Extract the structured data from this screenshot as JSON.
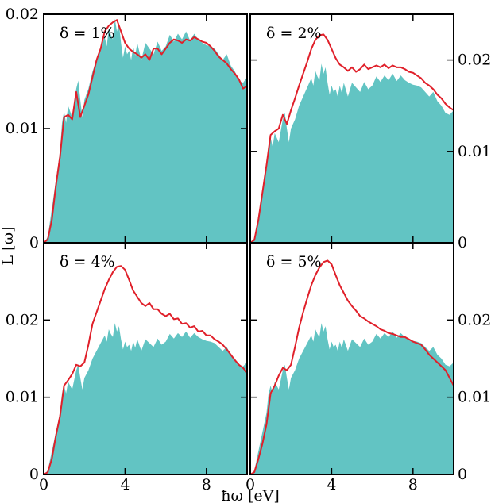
{
  "figure": {
    "ylabel": "L [ω]",
    "xlabel": "ħω [eV]"
  },
  "colors": {
    "fill": "#62c4c3",
    "line": "#e0202a",
    "frame": "#000000"
  },
  "chart_data": [
    {
      "type": "area",
      "panel_label": "δ = 1%",
      "ylim": [
        0,
        0.02
      ],
      "xlim": [
        0,
        10
      ],
      "yticks": [
        0,
        0.01,
        0.02
      ],
      "ytick_labels": [
        "0",
        "0.01",
        "0.02"
      ],
      "ytick_side": "left",
      "xticks": [
        0,
        4,
        8
      ],
      "xtick_labels": [],
      "legend": "top-left",
      "grid": false,
      "series": [
        {
          "kind": "filled",
          "x": [
            0,
            0.2,
            0.4,
            0.6,
            0.8,
            0.9,
            1.0,
            1.1,
            1.2,
            1.4,
            1.6,
            1.7,
            1.8,
            1.9,
            2.0,
            2.2,
            2.4,
            2.6,
            2.8,
            3.0,
            3.1,
            3.2,
            3.3,
            3.4,
            3.5,
            3.6,
            3.7,
            3.8,
            3.9,
            4.0,
            4.1,
            4.2,
            4.3,
            4.4,
            4.5,
            4.6,
            4.8,
            5.0,
            5.2,
            5.4,
            5.6,
            5.8,
            6.0,
            6.2,
            6.4,
            6.6,
            6.8,
            7.0,
            7.2,
            7.4,
            7.6,
            7.8,
            8.0,
            8.2,
            8.4,
            8.6,
            8.8,
            9.0,
            9.2,
            9.4,
            9.6,
            9.8,
            10.0
          ],
          "y": [
            0,
            0.0005,
            0.003,
            0.0055,
            0.008,
            0.0105,
            0.0115,
            0.0105,
            0.012,
            0.011,
            0.0135,
            0.0142,
            0.0125,
            0.011,
            0.0125,
            0.0135,
            0.015,
            0.016,
            0.017,
            0.018,
            0.0172,
            0.0188,
            0.0182,
            0.0178,
            0.0196,
            0.0185,
            0.0192,
            0.0175,
            0.0162,
            0.0172,
            0.0165,
            0.0168,
            0.016,
            0.0172,
            0.0164,
            0.0175,
            0.016,
            0.0175,
            0.017,
            0.0165,
            0.0176,
            0.0168,
            0.0172,
            0.0182,
            0.0176,
            0.0183,
            0.0178,
            0.0185,
            0.0177,
            0.0183,
            0.0178,
            0.0175,
            0.0173,
            0.0172,
            0.017,
            0.0165,
            0.016,
            0.0165,
            0.0155,
            0.015,
            0.0142,
            0.014,
            0.0145
          ]
        },
        {
          "kind": "line",
          "x": [
            0,
            0.2,
            0.4,
            0.6,
            0.8,
            1.0,
            1.2,
            1.4,
            1.6,
            1.8,
            2.0,
            2.2,
            2.4,
            2.6,
            2.8,
            3.0,
            3.2,
            3.4,
            3.6,
            3.8,
            4.0,
            4.2,
            4.4,
            4.6,
            4.8,
            5.0,
            5.2,
            5.4,
            5.6,
            5.8,
            6.0,
            6.2,
            6.4,
            6.6,
            6.8,
            7.0,
            7.2,
            7.4,
            7.6,
            7.8,
            8.0,
            8.2,
            8.4,
            8.6,
            8.8,
            9.0,
            9.2,
            9.4,
            9.6,
            9.8,
            10.0
          ],
          "y": [
            0,
            0.0003,
            0.002,
            0.005,
            0.0075,
            0.011,
            0.0112,
            0.0108,
            0.0132,
            0.011,
            0.012,
            0.013,
            0.0145,
            0.016,
            0.017,
            0.0185,
            0.019,
            0.0193,
            0.0195,
            0.0185,
            0.0175,
            0.017,
            0.0167,
            0.0165,
            0.0162,
            0.0165,
            0.016,
            0.017,
            0.017,
            0.0165,
            0.017,
            0.0175,
            0.0178,
            0.0177,
            0.0175,
            0.0178,
            0.0177,
            0.018,
            0.0178,
            0.0176,
            0.0175,
            0.0172,
            0.0168,
            0.0163,
            0.016,
            0.0157,
            0.0152,
            0.0148,
            0.0143,
            0.0135,
            0.0137
          ]
        }
      ]
    },
    {
      "type": "area",
      "panel_label": "δ = 2%",
      "ylim": [
        0,
        0.025
      ],
      "xlim": [
        0,
        10
      ],
      "yticks": [
        0,
        0.01,
        0.02
      ],
      "ytick_labels": [
        "0",
        "0.01",
        "0.02"
      ],
      "ytick_side": "right",
      "xticks": [
        0,
        4,
        8
      ],
      "xtick_labels": [],
      "legend": "top-left",
      "grid": false,
      "series": [
        {
          "kind": "filled",
          "x": [
            0,
            0.2,
            0.4,
            0.6,
            0.8,
            0.9,
            1.0,
            1.1,
            1.2,
            1.4,
            1.6,
            1.7,
            1.8,
            1.9,
            2.0,
            2.2,
            2.4,
            2.6,
            2.8,
            3.0,
            3.1,
            3.2,
            3.3,
            3.4,
            3.5,
            3.6,
            3.7,
            3.8,
            3.9,
            4.0,
            4.1,
            4.2,
            4.3,
            4.4,
            4.5,
            4.6,
            4.8,
            5.0,
            5.2,
            5.4,
            5.6,
            5.8,
            6.0,
            6.2,
            6.4,
            6.6,
            6.8,
            7.0,
            7.2,
            7.4,
            7.6,
            7.8,
            8.0,
            8.2,
            8.4,
            8.6,
            8.8,
            9.0,
            9.2,
            9.4,
            9.6,
            9.8,
            10.0
          ],
          "y": [
            0,
            0.0005,
            0.003,
            0.0055,
            0.008,
            0.0105,
            0.0115,
            0.0105,
            0.012,
            0.011,
            0.0135,
            0.0142,
            0.0125,
            0.011,
            0.0125,
            0.0135,
            0.015,
            0.016,
            0.017,
            0.018,
            0.0172,
            0.0188,
            0.0182,
            0.0178,
            0.0196,
            0.0185,
            0.0192,
            0.0175,
            0.0162,
            0.0172,
            0.0165,
            0.0168,
            0.016,
            0.0172,
            0.0164,
            0.0175,
            0.016,
            0.0175,
            0.017,
            0.0165,
            0.0176,
            0.0168,
            0.0172,
            0.0182,
            0.0176,
            0.0183,
            0.0178,
            0.0185,
            0.0177,
            0.0183,
            0.0178,
            0.0175,
            0.0173,
            0.0172,
            0.017,
            0.0165,
            0.016,
            0.0165,
            0.0155,
            0.015,
            0.0142,
            0.014,
            0.0145
          ]
        },
        {
          "kind": "line",
          "x": [
            0,
            0.2,
            0.4,
            0.6,
            0.8,
            1.0,
            1.2,
            1.4,
            1.6,
            1.8,
            2.0,
            2.2,
            2.4,
            2.6,
            2.8,
            3.0,
            3.2,
            3.4,
            3.6,
            3.8,
            4.0,
            4.2,
            4.4,
            4.6,
            4.8,
            5.0,
            5.2,
            5.4,
            5.6,
            5.8,
            6.0,
            6.2,
            6.4,
            6.6,
            6.8,
            7.0,
            7.2,
            7.4,
            7.6,
            7.8,
            8.0,
            8.2,
            8.4,
            8.6,
            8.8,
            9.0,
            9.2,
            9.4,
            9.6,
            9.8,
            10.0
          ],
          "y": [
            0,
            0.0003,
            0.0025,
            0.0055,
            0.0085,
            0.0118,
            0.0122,
            0.0125,
            0.014,
            0.013,
            0.0145,
            0.0158,
            0.0172,
            0.0185,
            0.0198,
            0.0212,
            0.0222,
            0.0227,
            0.0228,
            0.0222,
            0.0212,
            0.0202,
            0.0195,
            0.0192,
            0.0188,
            0.0192,
            0.0187,
            0.019,
            0.0195,
            0.019,
            0.0192,
            0.0194,
            0.0192,
            0.0195,
            0.0191,
            0.0194,
            0.0192,
            0.0192,
            0.019,
            0.0187,
            0.0186,
            0.0183,
            0.018,
            0.0175,
            0.0172,
            0.0168,
            0.0162,
            0.0158,
            0.0152,
            0.0148,
            0.0145
          ]
        }
      ]
    },
    {
      "type": "area",
      "panel_label": "δ = 4%",
      "ylim": [
        0,
        0.03
      ],
      "xlim": [
        0,
        10
      ],
      "yticks": [
        0,
        0.01,
        0.02
      ],
      "ytick_labels": [
        "0",
        "0.01",
        "0.02"
      ],
      "ytick_side": "left",
      "xticks": [
        0,
        4,
        8
      ],
      "xtick_labels": [
        "0",
        "4",
        "8"
      ],
      "legend": "top-left",
      "grid": false,
      "series": [
        {
          "kind": "filled",
          "x": [
            0,
            0.2,
            0.4,
            0.6,
            0.8,
            0.9,
            1.0,
            1.1,
            1.2,
            1.4,
            1.6,
            1.7,
            1.8,
            1.9,
            2.0,
            2.2,
            2.4,
            2.6,
            2.8,
            3.0,
            3.1,
            3.2,
            3.3,
            3.4,
            3.5,
            3.6,
            3.7,
            3.8,
            3.9,
            4.0,
            4.1,
            4.2,
            4.3,
            4.4,
            4.5,
            4.6,
            4.8,
            5.0,
            5.2,
            5.4,
            5.6,
            5.8,
            6.0,
            6.2,
            6.4,
            6.6,
            6.8,
            7.0,
            7.2,
            7.4,
            7.6,
            7.8,
            8.0,
            8.2,
            8.4,
            8.6,
            8.8,
            9.0,
            9.2,
            9.4,
            9.6,
            9.8,
            10.0
          ],
          "y": [
            0,
            0.0005,
            0.003,
            0.0055,
            0.008,
            0.0105,
            0.0115,
            0.0105,
            0.012,
            0.011,
            0.0135,
            0.0142,
            0.0125,
            0.011,
            0.0125,
            0.0135,
            0.015,
            0.016,
            0.017,
            0.018,
            0.0172,
            0.0188,
            0.0182,
            0.0178,
            0.0196,
            0.0185,
            0.0192,
            0.0175,
            0.0162,
            0.0172,
            0.0165,
            0.0168,
            0.016,
            0.0172,
            0.0164,
            0.0175,
            0.016,
            0.0175,
            0.017,
            0.0165,
            0.0176,
            0.0168,
            0.0172,
            0.0182,
            0.0176,
            0.0183,
            0.0178,
            0.0185,
            0.0177,
            0.0183,
            0.0178,
            0.0175,
            0.0173,
            0.0172,
            0.017,
            0.0165,
            0.016,
            0.0165,
            0.0155,
            0.015,
            0.0142,
            0.014,
            0.0145
          ]
        },
        {
          "kind": "line",
          "x": [
            0,
            0.2,
            0.4,
            0.6,
            0.8,
            1.0,
            1.2,
            1.4,
            1.6,
            1.8,
            2.0,
            2.2,
            2.4,
            2.6,
            2.8,
            3.0,
            3.2,
            3.4,
            3.6,
            3.8,
            4.0,
            4.2,
            4.4,
            4.6,
            4.8,
            5.0,
            5.2,
            5.4,
            5.6,
            5.8,
            6.0,
            6.2,
            6.4,
            6.6,
            6.8,
            7.0,
            7.2,
            7.4,
            7.6,
            7.8,
            8.0,
            8.2,
            8.4,
            8.6,
            8.8,
            9.0,
            9.2,
            9.4,
            9.6,
            9.8,
            10.0
          ],
          "y": [
            0,
            0.0003,
            0.002,
            0.005,
            0.0075,
            0.0115,
            0.0122,
            0.013,
            0.0142,
            0.014,
            0.0145,
            0.0168,
            0.0195,
            0.021,
            0.0225,
            0.024,
            0.0252,
            0.0262,
            0.0269,
            0.027,
            0.0265,
            0.0252,
            0.0238,
            0.023,
            0.0222,
            0.0218,
            0.0222,
            0.0214,
            0.0214,
            0.0208,
            0.0205,
            0.0208,
            0.0201,
            0.0202,
            0.0195,
            0.0196,
            0.019,
            0.0192,
            0.0185,
            0.0186,
            0.018,
            0.018,
            0.0175,
            0.0172,
            0.0168,
            0.0162,
            0.0155,
            0.0148,
            0.0142,
            0.0138,
            0.0132
          ]
        }
      ]
    },
    {
      "type": "area",
      "panel_label": "δ = 5%",
      "ylim": [
        0,
        0.03
      ],
      "xlim": [
        0,
        10
      ],
      "yticks": [
        0,
        0.01,
        0.02
      ],
      "ytick_labels": [
        "0",
        "0.01",
        "0.02"
      ],
      "ytick_side": "right",
      "xticks": [
        0,
        4,
        8
      ],
      "xtick_labels": [
        "0",
        "4",
        "8"
      ],
      "legend": "top-left",
      "grid": false,
      "series": [
        {
          "kind": "filled",
          "x": [
            0,
            0.2,
            0.4,
            0.6,
            0.8,
            0.9,
            1.0,
            1.1,
            1.2,
            1.4,
            1.6,
            1.7,
            1.8,
            1.9,
            2.0,
            2.2,
            2.4,
            2.6,
            2.8,
            3.0,
            3.1,
            3.2,
            3.3,
            3.4,
            3.5,
            3.6,
            3.7,
            3.8,
            3.9,
            4.0,
            4.1,
            4.2,
            4.3,
            4.4,
            4.5,
            4.6,
            4.8,
            5.0,
            5.2,
            5.4,
            5.6,
            5.8,
            6.0,
            6.2,
            6.4,
            6.6,
            6.8,
            7.0,
            7.2,
            7.4,
            7.6,
            7.8,
            8.0,
            8.2,
            8.4,
            8.6,
            8.8,
            9.0,
            9.2,
            9.4,
            9.6,
            9.8,
            10.0
          ],
          "y": [
            0,
            0.0005,
            0.003,
            0.0055,
            0.008,
            0.0105,
            0.0115,
            0.0105,
            0.012,
            0.011,
            0.0135,
            0.0142,
            0.0125,
            0.011,
            0.0125,
            0.0135,
            0.015,
            0.016,
            0.017,
            0.018,
            0.0172,
            0.0188,
            0.0182,
            0.0178,
            0.0196,
            0.0185,
            0.0192,
            0.0175,
            0.0162,
            0.0172,
            0.0165,
            0.0168,
            0.016,
            0.0172,
            0.0164,
            0.0175,
            0.016,
            0.0175,
            0.017,
            0.0165,
            0.0176,
            0.0168,
            0.0172,
            0.0182,
            0.0176,
            0.0183,
            0.0178,
            0.0185,
            0.0177,
            0.0183,
            0.0178,
            0.0175,
            0.0173,
            0.0172,
            0.017,
            0.0165,
            0.016,
            0.0165,
            0.0155,
            0.015,
            0.0142,
            0.014,
            0.0145
          ]
        },
        {
          "kind": "line",
          "x": [
            0,
            0.2,
            0.4,
            0.6,
            0.8,
            1.0,
            1.2,
            1.4,
            1.6,
            1.8,
            2.0,
            2.2,
            2.4,
            2.6,
            2.8,
            3.0,
            3.2,
            3.4,
            3.6,
            3.8,
            4.0,
            4.2,
            4.4,
            4.6,
            4.8,
            5.0,
            5.2,
            5.4,
            5.6,
            5.8,
            6.0,
            6.2,
            6.4,
            6.6,
            6.8,
            7.0,
            7.2,
            7.4,
            7.6,
            7.8,
            8.0,
            8.2,
            8.4,
            8.6,
            8.8,
            9.0,
            9.2,
            9.4,
            9.6,
            9.8,
            10.0
          ],
          "y": [
            0,
            0.0003,
            0.002,
            0.004,
            0.0065,
            0.0105,
            0.0115,
            0.0128,
            0.0138,
            0.0135,
            0.0142,
            0.0165,
            0.019,
            0.021,
            0.0228,
            0.0245,
            0.0258,
            0.0268,
            0.0275,
            0.0277,
            0.0272,
            0.0258,
            0.0245,
            0.0235,
            0.0225,
            0.0218,
            0.0212,
            0.0205,
            0.0202,
            0.0198,
            0.0195,
            0.0192,
            0.0188,
            0.0186,
            0.0183,
            0.0182,
            0.018,
            0.0178,
            0.0178,
            0.0175,
            0.0172,
            0.017,
            0.0168,
            0.0162,
            0.0155,
            0.015,
            0.0145,
            0.014,
            0.0135,
            0.0125,
            0.0115
          ]
        }
      ]
    }
  ]
}
